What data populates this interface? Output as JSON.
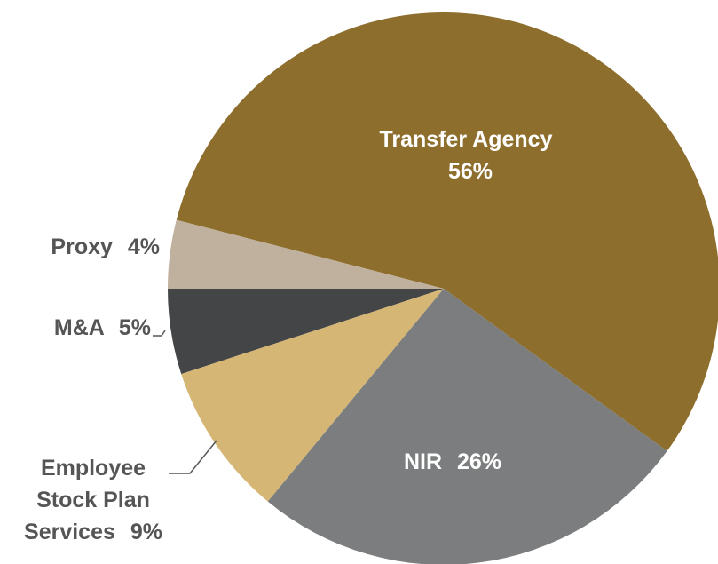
{
  "chart_data": {
    "type": "pie",
    "categories": [
      "NIR",
      "Employee Stock Plan Services",
      "M&A",
      "Proxy",
      "Transfer Agency"
    ],
    "values": [
      26,
      9,
      5,
      4,
      56
    ],
    "value_labels": [
      "26%",
      "9%",
      "5%",
      "4%",
      "56%"
    ],
    "colors": [
      "#7b7d7e",
      "#d6b675",
      "#444547",
      "#c0b09e",
      "#8d6e2c"
    ]
  }
}
